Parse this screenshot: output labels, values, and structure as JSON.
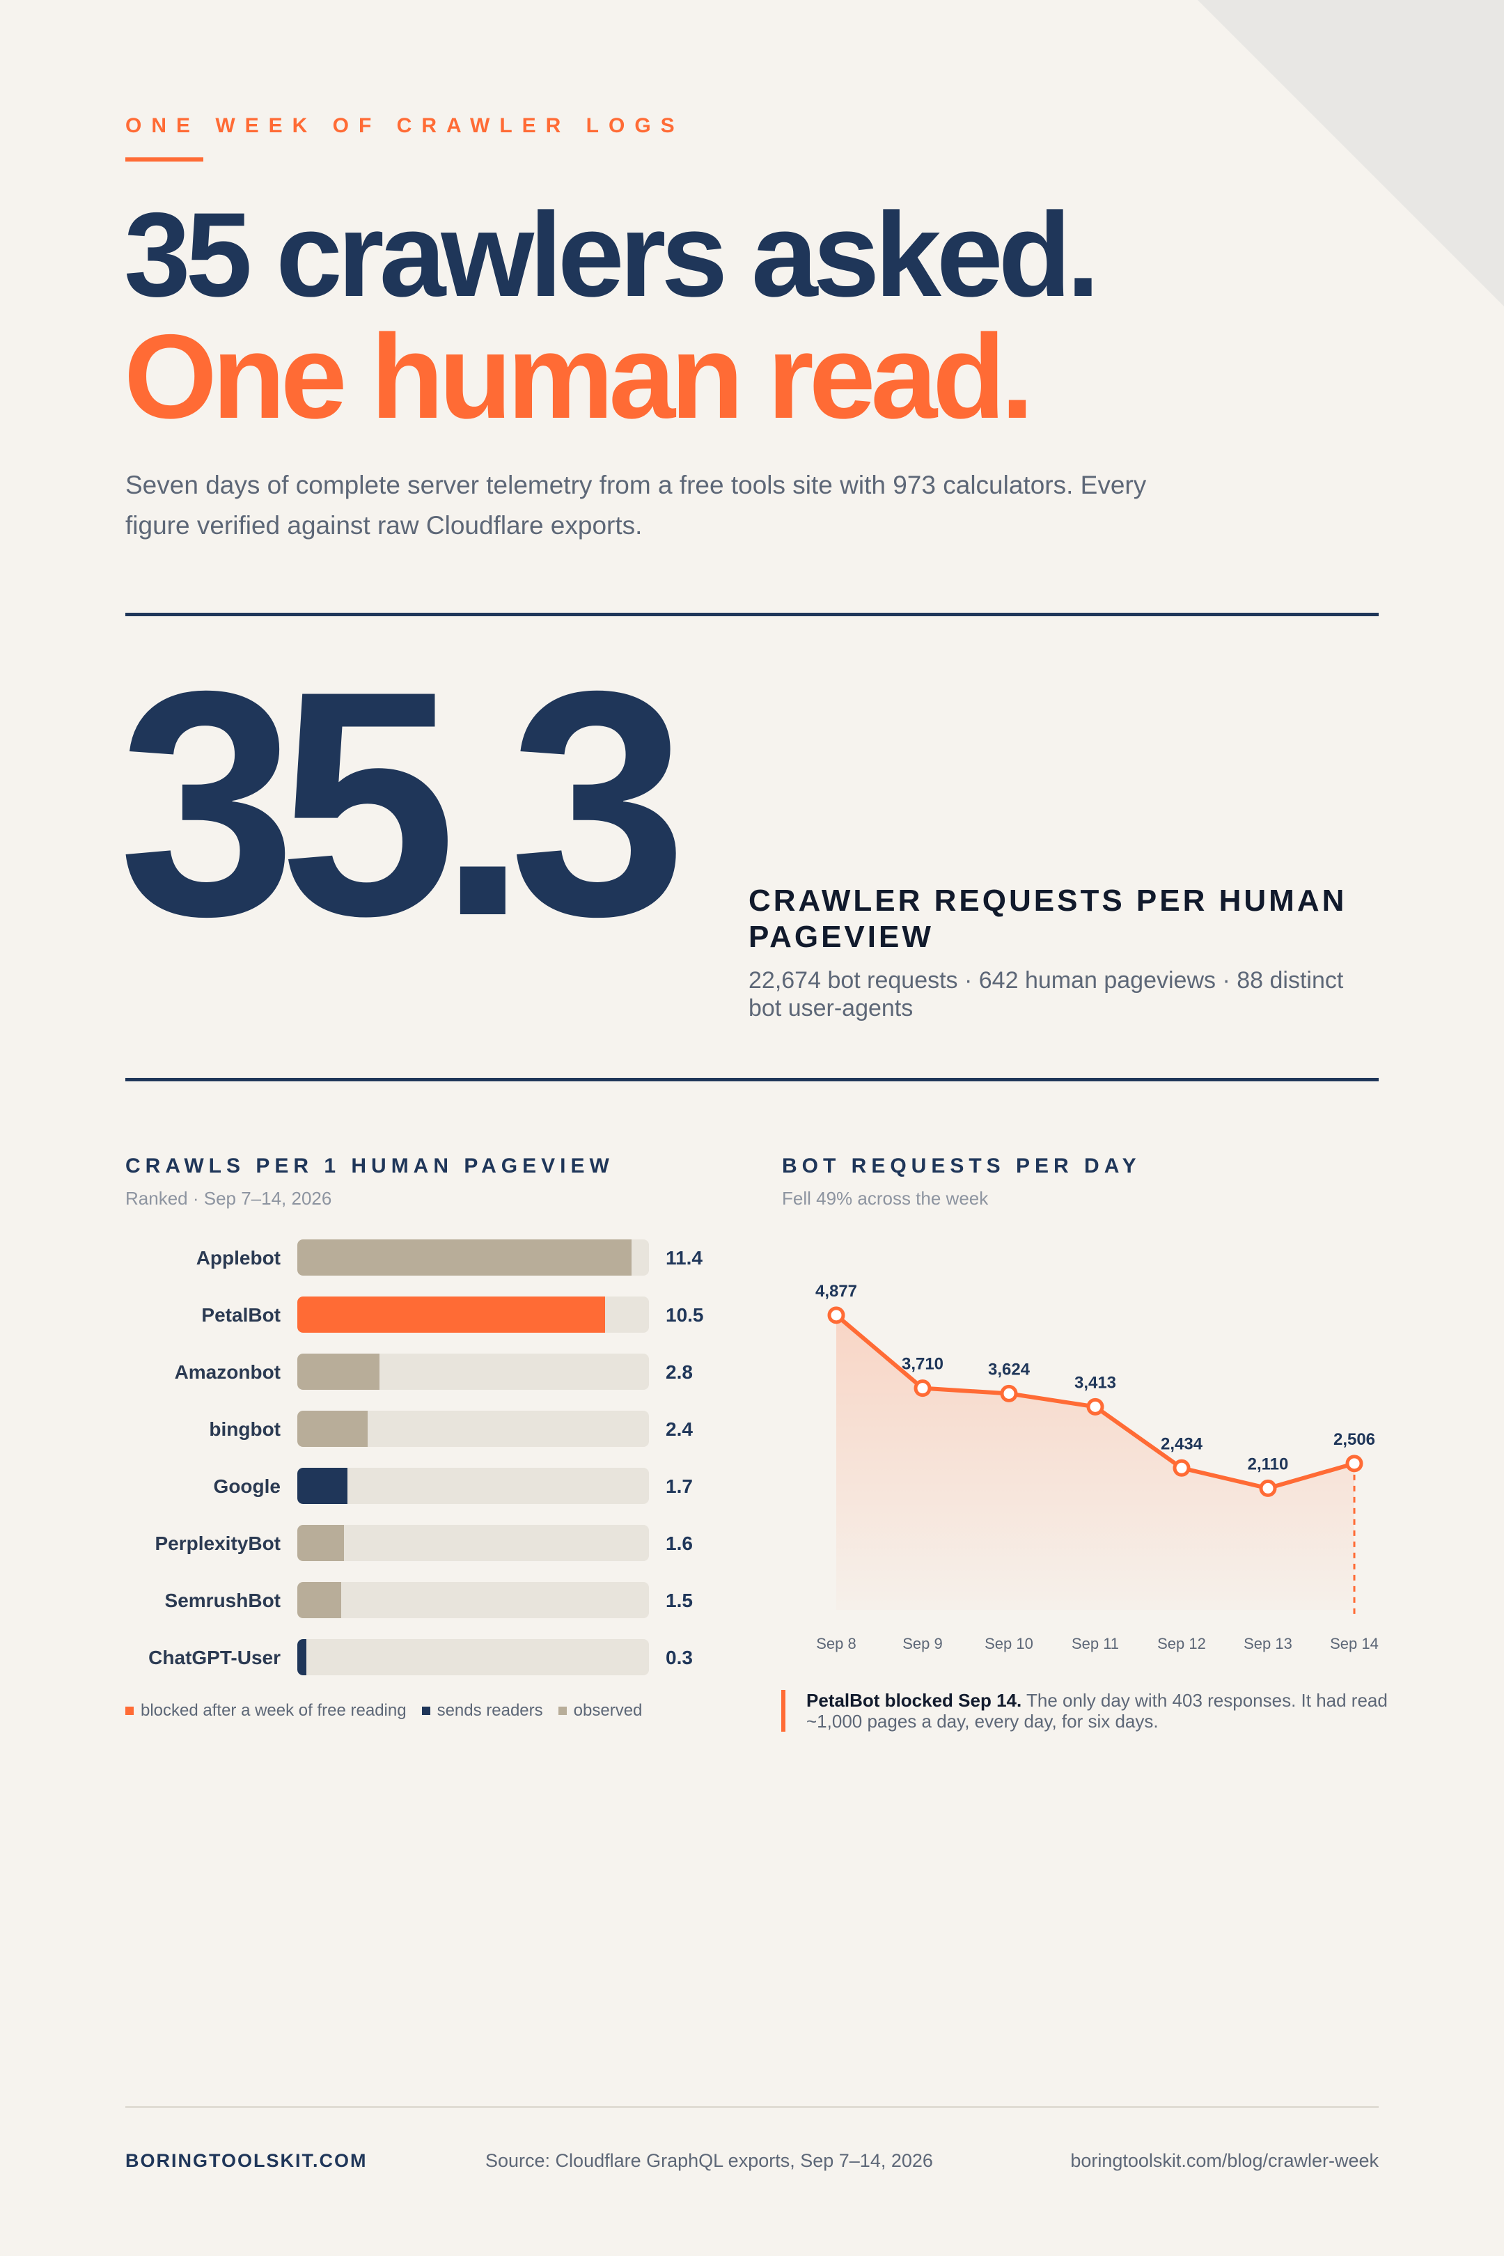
{
  "kicker": "ONE WEEK OF CRAWLER LOGS",
  "headline": {
    "line1": "35 crawlers asked.",
    "line2": "One human read."
  },
  "lede": "Seven days of complete server telemetry from a free tools site with 973 calculators. Every figure verified against raw Cloudflare exports.",
  "hero": {
    "number": "35.3",
    "label": "CRAWLER REQUESTS PER HUMAN PAGEVIEW",
    "stats": "22,674 bot requests  ·  642 human pageviews  ·  88 distinct bot user-agents"
  },
  "colors": {
    "navy": "#1f3659",
    "orange": "#ff6b35",
    "taupe": "#b8ad99",
    "track": "#e8e4dc",
    "background": "#f6f3ee"
  },
  "chart_data": [
    {
      "type": "bar",
      "orientation": "horizontal",
      "title": "CRAWLS PER 1 HUMAN PAGEVIEW",
      "subtitle": "Ranked · Sep 7–14, 2026",
      "categories": [
        "Applebot",
        "PetalBot",
        "Amazonbot",
        "bingbot",
        "Google",
        "PerplexityBot",
        "SemrushBot",
        "ChatGPT-User"
      ],
      "values": [
        11.4,
        10.5,
        2.8,
        2.4,
        1.7,
        1.6,
        1.5,
        0.3
      ],
      "value_labels": [
        "11.4",
        "10.5",
        "2.8",
        "2.4",
        "1.7",
        "1.6",
        "1.5",
        "0.3"
      ],
      "groups": [
        "observed",
        "blocked",
        "observed",
        "observed",
        "sends",
        "observed",
        "observed",
        "sends"
      ],
      "xlim": [
        0,
        12
      ],
      "grid": false,
      "legend": [
        {
          "key": "blocked",
          "label": "blocked after a week of free reading",
          "color": "#ff6b35"
        },
        {
          "key": "sends",
          "label": "sends readers",
          "color": "#1f3659"
        },
        {
          "key": "observed",
          "label": "observed",
          "color": "#b8ad99"
        }
      ],
      "legend_position": "bottom-left"
    },
    {
      "type": "line",
      "title": "BOT REQUESTS PER DAY",
      "subtitle": "Fell 49% across the week",
      "x": [
        "Sep 8",
        "Sep 9",
        "Sep 10",
        "Sep 11",
        "Sep 12",
        "Sep 13",
        "Sep 14"
      ],
      "y": [
        4877,
        3710,
        3624,
        3413,
        2434,
        2110,
        2506
      ],
      "data_labels": [
        "4,877",
        "3,710",
        "3,624",
        "3,413",
        "2,434",
        "2,110",
        "2,506"
      ],
      "ylim": [
        0,
        5000
      ],
      "area_fill": true,
      "marker_line_at": "Sep 14",
      "grid": false,
      "annotation": {
        "bold": "PetalBot blocked Sep 14.",
        "text": " The only day with 403 responses. It had read ~1,000 pages a day, every day, for six days."
      }
    }
  ],
  "footer": {
    "brand": "BORINGTOOLSKIT.COM",
    "source": "Source: Cloudflare GraphQL exports, Sep 7–14, 2026",
    "url": "boringtoolskit.com/blog/crawler-week"
  }
}
